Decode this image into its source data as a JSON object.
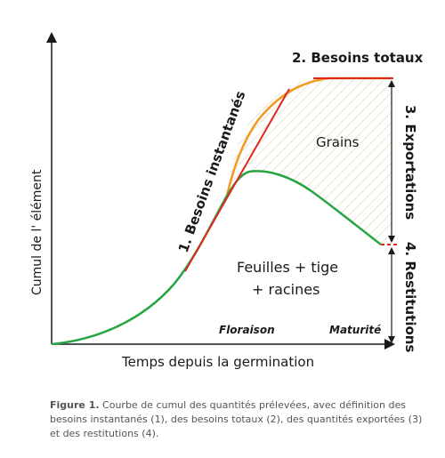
{
  "colors": {
    "total_curve": "#f29a1f",
    "leaves_curve": "#27a543",
    "tangent_lines": "#e0271f",
    "axes": "#1a1a1a",
    "hatch": "#d9d4a8"
  },
  "labels": {
    "besoins_totaux": "2. Besoins totaux",
    "besoins_instantanes": "1. Besoins instantanés",
    "exportations": "3. Exportations",
    "restitutions": "4. Restitutions",
    "grains": "Grains",
    "feuilles_line1": "Feuilles + tige",
    "feuilles_line2": "+ racines",
    "floraison": "Floraison",
    "maturite": "Maturité",
    "y_axis": "Cumul de l'   élément",
    "x_axis": "Temps depuis la germination"
  },
  "caption": {
    "figure_number": "Figure 1.",
    "text": " Courbe de cumul des quantités prélevées, avec définition des besoins instantanés (1), des besoins totaux (2), des quantités exportées (3) et des restitutions (4)."
  }
}
